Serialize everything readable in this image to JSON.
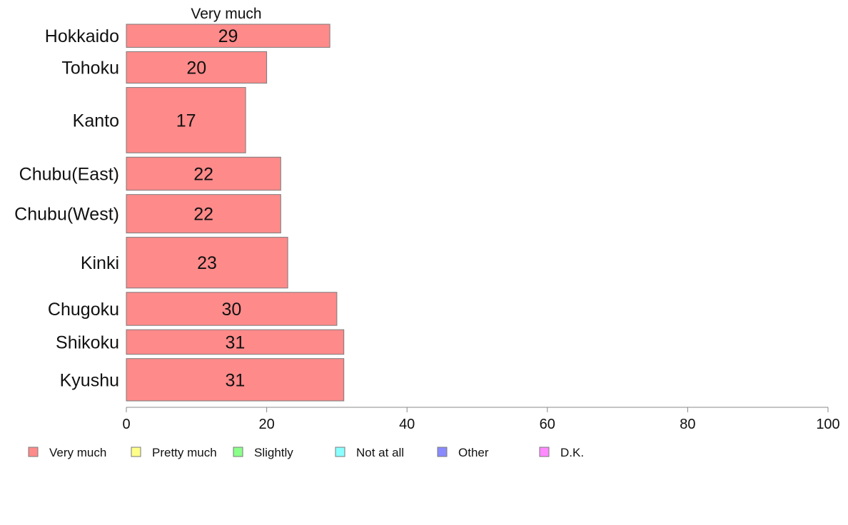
{
  "chart_data": {
    "type": "bar",
    "orientation": "horizontal",
    "series_title": "Very much",
    "categories": [
      "Hokkaido",
      "Tohoku",
      "Kanto",
      "Chubu(East)",
      "Chubu(West)",
      "Kinki",
      "Chugoku",
      "Shikoku",
      "Kyushu"
    ],
    "category_weights": [
      0.6,
      0.82,
      1.7,
      0.86,
      1.0,
      1.32,
      0.86,
      0.64,
      1.1
    ],
    "series": [
      {
        "name": "Very much",
        "values": [
          29,
          20,
          17,
          22,
          22,
          23,
          30,
          31,
          31
        ],
        "color": "#ff8a8a"
      }
    ],
    "xlim": [
      0,
      100
    ],
    "xticks": [
      0,
      20,
      40,
      60,
      80,
      100
    ],
    "grid": false,
    "legend": {
      "placement": "bottom",
      "entries": [
        {
          "label": "Very much",
          "color": "#ff8a8a"
        },
        {
          "label": "Pretty much",
          "color": "#ffff8a"
        },
        {
          "label": "Slightly",
          "color": "#8aff8a"
        },
        {
          "label": "Not at all",
          "color": "#8affff"
        },
        {
          "label": "Other",
          "color": "#8a8aff"
        },
        {
          "label": "D.K.",
          "color": "#ff8aff"
        }
      ]
    }
  }
}
